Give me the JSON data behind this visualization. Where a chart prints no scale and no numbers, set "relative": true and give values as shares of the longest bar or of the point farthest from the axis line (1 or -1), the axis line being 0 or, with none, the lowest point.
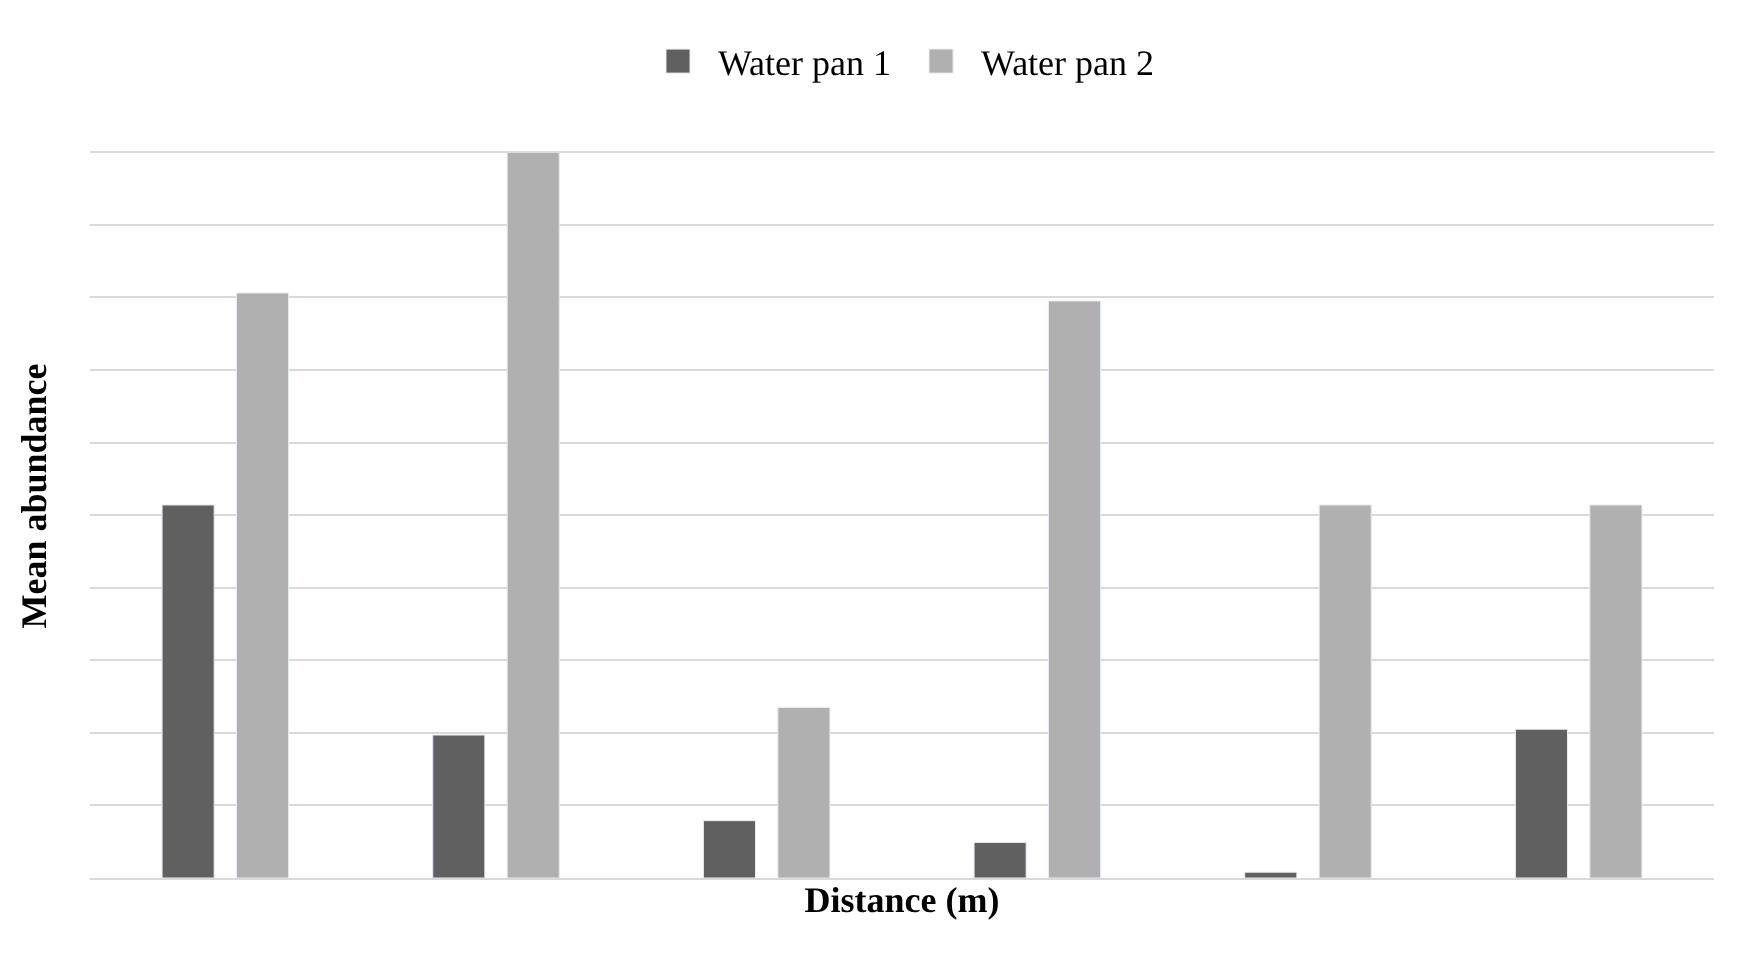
{
  "chart_data": {
    "type": "bar",
    "relative": true,
    "xlabel": "Distance (m)",
    "ylabel": "Mean abundance",
    "categories": [
      null,
      null,
      null,
      null,
      null,
      null
    ],
    "series": [
      {
        "name": "Water pan 1",
        "color": "#606060",
        "values": [
          0.514,
          0.197,
          0.079,
          0.049,
          0.008,
          0.205
        ]
      },
      {
        "name": "Water pan 2",
        "color": "#b0b0b0",
        "values": [
          0.806,
          1,
          0.235,
          0.795,
          0.514,
          0.514
        ]
      }
    ],
    "grid": "y",
    "legend": "top",
    "tick_labels": false
  }
}
